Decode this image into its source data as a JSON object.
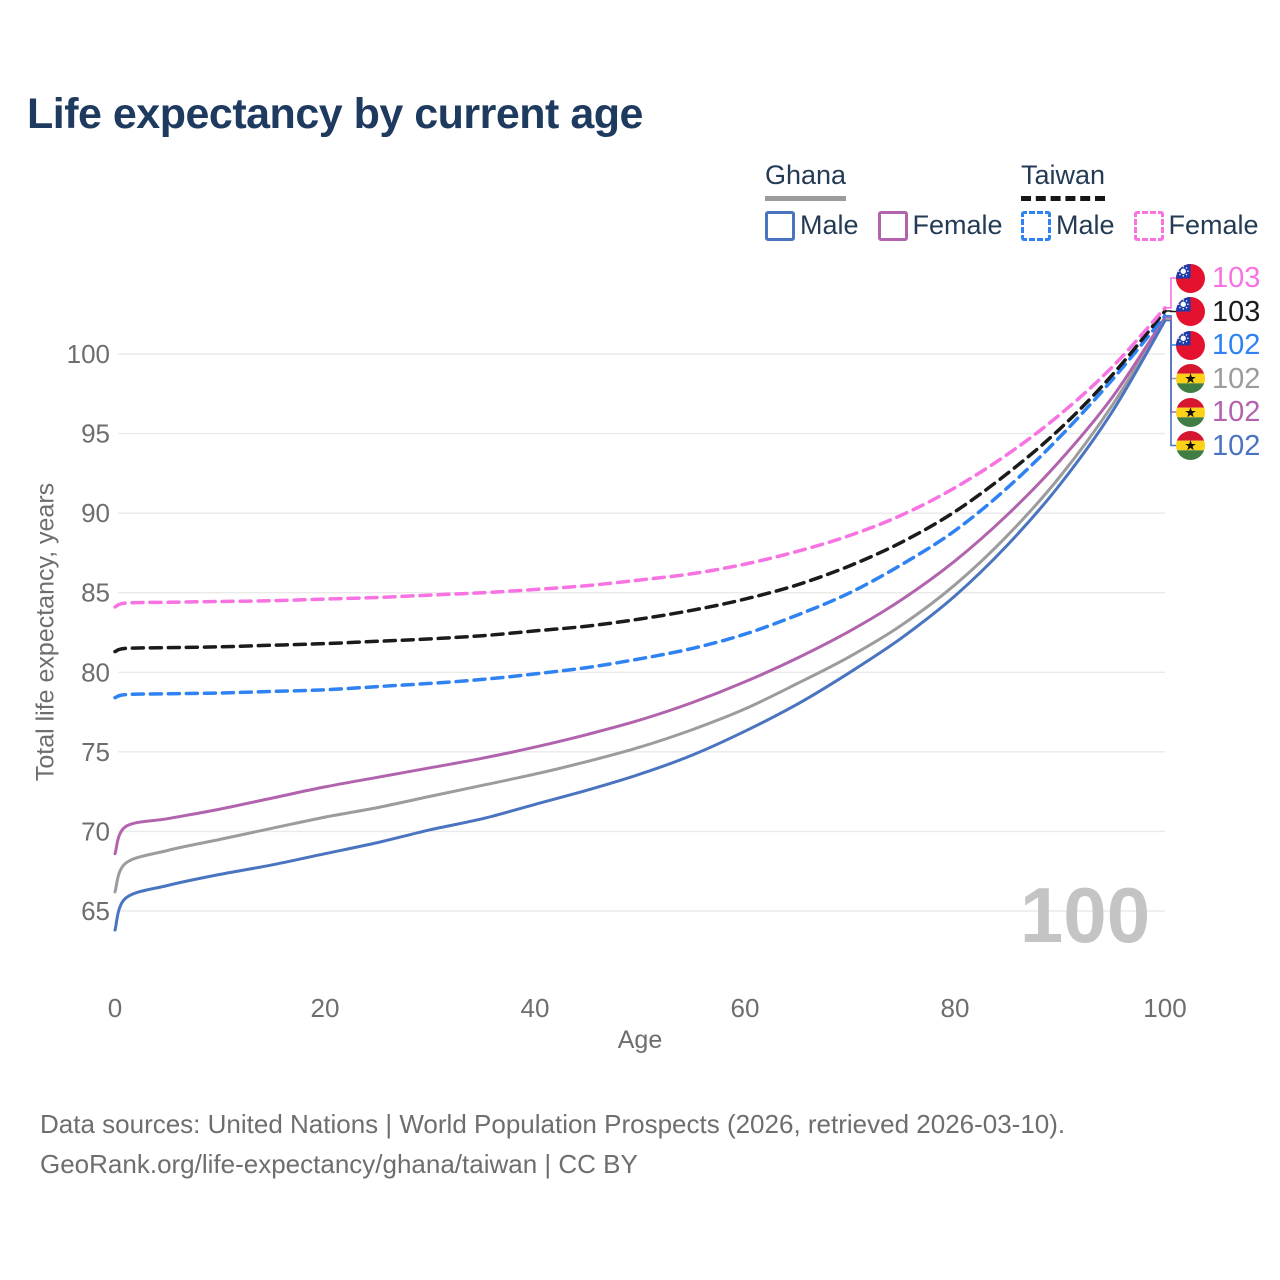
{
  "header": {
    "title": "Life expectancy by current age"
  },
  "legend": {
    "groups": [
      {
        "country": "Ghana",
        "line_style": "solid",
        "underline_color": "#9B9B9B",
        "items": [
          {
            "label": "Male",
            "series": "ghana_male"
          },
          {
            "label": "Female",
            "series": "ghana_female"
          }
        ]
      },
      {
        "country": "Taiwan",
        "line_style": "dashed",
        "underline_color": "#161616",
        "items": [
          {
            "label": "Male",
            "series": "taiwan_male"
          },
          {
            "label": "Female",
            "series": "taiwan_female"
          }
        ]
      }
    ]
  },
  "chart_data": {
    "type": "line",
    "title": "Life expectancy by current age",
    "xlabel": "Age",
    "ylabel": "Total life expectancy, years",
    "xlim": [
      0,
      100
    ],
    "ylim": [
      63,
      104
    ],
    "xticks": [
      0,
      20,
      40,
      60,
      80,
      100
    ],
    "yticks": [
      65,
      70,
      75,
      80,
      85,
      90,
      95,
      100
    ],
    "grid": "horizontal",
    "gridline_color": "#EAEAEA",
    "tick_label_color": "#6E6E6E",
    "watermark": "100",
    "legend_position": "top-right",
    "x_ages": [
      0,
      1,
      5,
      10,
      15,
      20,
      25,
      30,
      35,
      40,
      45,
      50,
      55,
      60,
      65,
      70,
      75,
      80,
      85,
      90,
      95,
      100
    ],
    "series": [
      {
        "key": "ghana",
        "name": "Ghana",
        "country": "Ghana",
        "sex": "both",
        "color": "#9C9C9C",
        "dashed": false,
        "flag": "ghana",
        "end_label": "102",
        "label_row": 3,
        "values": [
          66.2,
          68.0,
          68.8,
          69.5,
          70.2,
          70.9,
          71.5,
          72.2,
          72.9,
          73.6,
          74.4,
          75.3,
          76.4,
          77.7,
          79.3,
          81.0,
          83.0,
          85.5,
          88.6,
          92.3,
          96.8,
          102.2
        ]
      },
      {
        "key": "ghana_female",
        "name": "Ghana Female",
        "country": "Ghana",
        "sex": "female",
        "color": "#B164AD",
        "dashed": false,
        "flag": "ghana",
        "end_label": "102",
        "label_row": 4,
        "values": [
          68.6,
          70.3,
          70.8,
          71.4,
          72.1,
          72.8,
          73.4,
          74.0,
          74.6,
          75.3,
          76.1,
          77.0,
          78.1,
          79.4,
          80.9,
          82.6,
          84.6,
          87.0,
          89.9,
          93.3,
          97.3,
          102.3
        ]
      },
      {
        "key": "ghana_male",
        "name": "Ghana Male",
        "country": "Ghana",
        "sex": "male",
        "color": "#4A74C0",
        "dashed": false,
        "flag": "ghana",
        "end_label": "102",
        "label_row": 5,
        "values": [
          63.8,
          65.8,
          66.6,
          67.3,
          67.9,
          68.6,
          69.3,
          70.1,
          70.8,
          71.7,
          72.6,
          73.6,
          74.8,
          76.3,
          78.0,
          80.0,
          82.2,
          84.8,
          88.0,
          91.8,
          96.4,
          102.1
        ]
      },
      {
        "key": "taiwan_male",
        "name": "Taiwan Male",
        "country": "Taiwan",
        "sex": "male",
        "color": "#2E82F2",
        "dashed": true,
        "flag": "taiwan",
        "end_label": "102",
        "label_row": 2,
        "values": [
          78.4,
          78.6,
          78.65,
          78.7,
          78.8,
          78.9,
          79.1,
          79.3,
          79.55,
          79.9,
          80.3,
          80.85,
          81.5,
          82.4,
          83.6,
          85.0,
          86.8,
          88.9,
          91.6,
          94.8,
          98.4,
          102.4
        ]
      },
      {
        "key": "taiwan",
        "name": "Taiwan",
        "country": "Taiwan",
        "sex": "both",
        "color": "#1B1B1B",
        "dashed": true,
        "flag": "taiwan",
        "end_label": "103",
        "label_row": 1,
        "values": [
          81.3,
          81.5,
          81.55,
          81.6,
          81.7,
          81.8,
          81.95,
          82.1,
          82.3,
          82.6,
          82.9,
          83.35,
          83.9,
          84.6,
          85.5,
          86.7,
          88.2,
          90.1,
          92.5,
          95.3,
          98.7,
          102.7
        ]
      },
      {
        "key": "taiwan_female",
        "name": "Taiwan Female",
        "country": "Taiwan",
        "sex": "female",
        "color": "#F873E2",
        "dashed": true,
        "flag": "taiwan",
        "end_label": "103",
        "label_row": 0,
        "values": [
          84.1,
          84.35,
          84.4,
          84.45,
          84.5,
          84.6,
          84.7,
          84.85,
          85.0,
          85.2,
          85.45,
          85.8,
          86.2,
          86.8,
          87.6,
          88.6,
          89.9,
          91.6,
          93.7,
          96.2,
          99.2,
          102.9
        ]
      }
    ]
  },
  "footer": {
    "line1": "Data sources: United Nations | World Population Prospects (2026, retrieved 2026-03-10).",
    "line2": "GeoRank.org/life-expectancy/ghana/taiwan | CC BY"
  }
}
